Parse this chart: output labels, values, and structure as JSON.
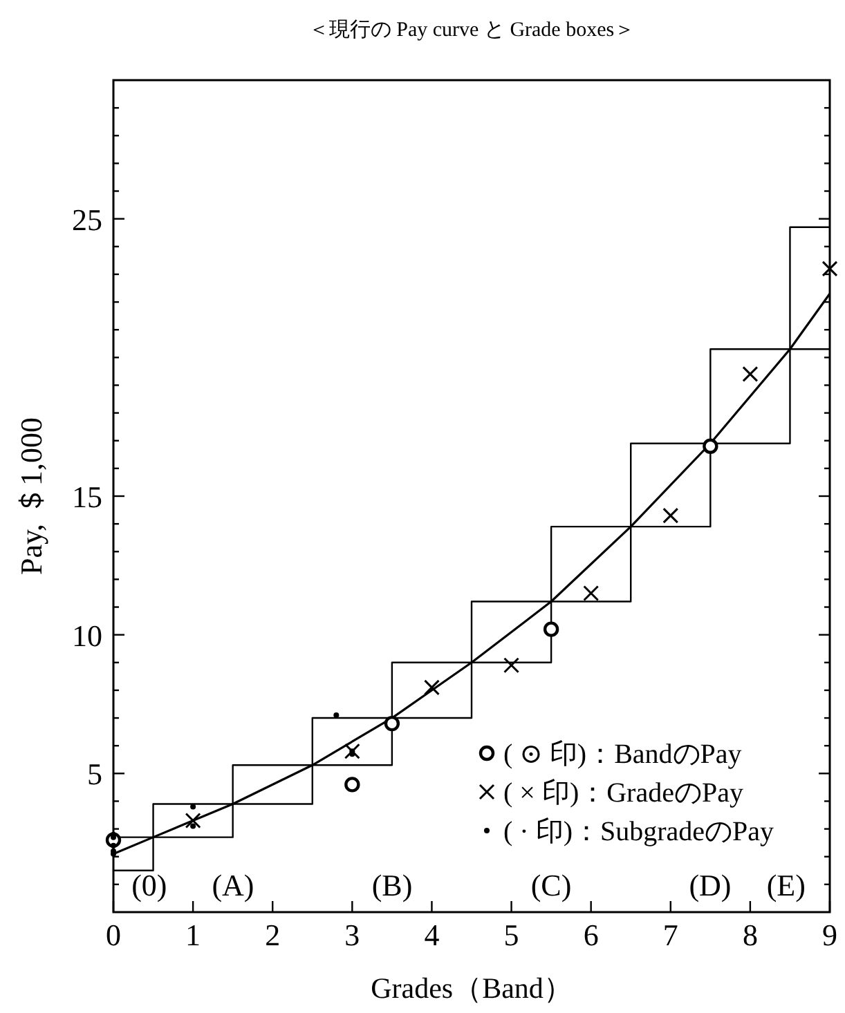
{
  "chart_data": {
    "type": "line",
    "title": "＜現行の Pay curve と Grade boxes＞",
    "xlabel": "Grades（Band）",
    "ylabel": "Pay, ＄1,000",
    "xlim": [
      0,
      9
    ],
    "xticks": [
      0,
      1,
      2,
      3,
      4,
      5,
      6,
      7,
      8,
      9
    ],
    "ylim": [
      0,
      30
    ],
    "yticks": [
      {
        "value": 1,
        "label": null
      },
      {
        "value": 2,
        "label": null
      },
      {
        "value": 3,
        "label": null
      },
      {
        "value": 4,
        "label": null
      },
      5,
      {
        "value": 6,
        "label": null
      },
      {
        "value": 7,
        "label": null
      },
      {
        "value": 8,
        "label": null
      },
      {
        "value": 9,
        "label": null
      },
      10,
      {
        "value": 11,
        "label": null
      },
      {
        "value": 12,
        "label": null
      },
      {
        "value": 13,
        "label": null
      },
      {
        "value": 14,
        "label": null
      },
      15,
      {
        "value": 16,
        "label": null
      },
      {
        "value": 17,
        "label": null
      },
      {
        "value": 18,
        "label": null
      },
      {
        "value": 19,
        "label": null
      },
      {
        "value": 20,
        "label": null
      },
      {
        "value": 21,
        "label": null
      },
      {
        "value": 22,
        "label": null
      },
      {
        "value": 23,
        "label": null
      },
      {
        "value": 24,
        "label": null
      },
      25,
      {
        "value": 26,
        "label": null
      },
      {
        "value": 27,
        "label": null
      },
      {
        "value": 28,
        "label": null
      },
      {
        "value": 29,
        "label": null
      }
    ],
    "grid": false,
    "legend": "bottom right",
    "series": [
      {
        "type": "step",
        "color": "#000000",
        "x": [
          0,
          1,
          2,
          3,
          4,
          5,
          6,
          7,
          8,
          9
        ],
        "values": [
          1.5,
          2.7,
          3.9,
          5.3,
          7.0,
          9.0,
          11.2,
          13.9,
          16.9,
          20.3
        ]
      },
      {
        "type": "step",
        "color": "#000000",
        "x": [
          0,
          1,
          2,
          3,
          4,
          5,
          6,
          7,
          8,
          9
        ],
        "values": [
          2.7,
          3.9,
          5.3,
          7.0,
          9.0,
          11.2,
          13.9,
          16.9,
          20.3,
          24.7
        ]
      },
      {
        "type": "line",
        "color": "#000000",
        "x": [
          0,
          0.5,
          1.5,
          2.5,
          3.5,
          4.5,
          5.5,
          6.5,
          7.5,
          8.5,
          9
        ],
        "values": [
          2.1,
          2.7,
          3.9,
          5.3,
          7.0,
          9.0,
          11.2,
          13.9,
          16.9,
          20.3,
          22.3
        ]
      },
      {
        "type": "scatter",
        "name": "( ⊙ 印)：BandのPay",
        "marker": "circle",
        "color": "#000000",
        "x": [
          0,
          3,
          3.5,
          5.5,
          7.5
        ],
        "values": [
          2.6,
          4.6,
          6.8,
          10.2,
          16.8
        ]
      },
      {
        "type": "scatter",
        "name": "( × 印)：GradeのPay",
        "marker": "cross",
        "color": "#000000",
        "x": [
          1,
          3,
          4,
          5,
          6,
          7,
          8,
          9
        ],
        "values": [
          3.3,
          5.8,
          8.1,
          8.9,
          11.5,
          14.3,
          19.4,
          23.2
        ]
      },
      {
        "type": "scatter",
        "name": "( · 印)：SubgradeのPay",
        "color": "#000000",
        "x": [
          0,
          0,
          0,
          0,
          0,
          1,
          1,
          2.8,
          3,
          3
        ],
        "values": [
          2.8,
          2.7,
          2.4,
          2.2,
          2.1,
          3.8,
          3.1,
          7.1,
          5.8,
          5.7
        ]
      }
    ],
    "annotations": [
      "(0)",
      "(A)",
      "(B)",
      "(C)",
      "(D)",
      "(E)"
    ]
  }
}
